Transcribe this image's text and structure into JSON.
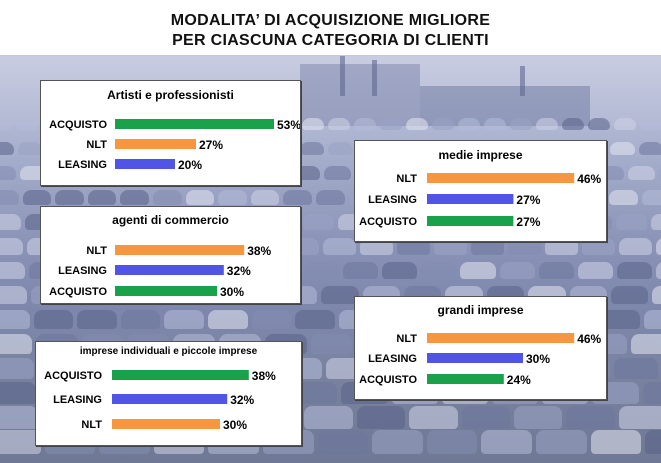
{
  "header": {
    "title_line1": "MODALITA’ DI ACQUISIZIONE MIGLIORE",
    "title_line2": "PER CIASCUNA CATEGORIA DI CLIENTI"
  },
  "colors": {
    "acquisto": "#1aa24a",
    "nlt": "#f7963e",
    "leasing": "#5055e8"
  },
  "chart_data": [
    {
      "type": "bar",
      "title": "Artisti e professionisti",
      "categories": [
        "ACQUISTO",
        "NLT",
        "LEASING"
      ],
      "values": [
        53,
        27,
        20
      ],
      "value_labels": [
        "53%",
        "27%",
        "20%"
      ]
    },
    {
      "type": "bar",
      "title": "agenti di commercio",
      "categories": [
        "NLT",
        "LEASING",
        "ACQUISTO"
      ],
      "values": [
        38,
        32,
        30
      ],
      "value_labels": [
        "38%",
        "32%",
        "30%"
      ]
    },
    {
      "type": "bar",
      "title": "imprese individuali e piccole imprese",
      "categories": [
        "ACQUISTO",
        "LEASING",
        "NLT"
      ],
      "values": [
        38,
        32,
        30
      ],
      "value_labels": [
        "38%",
        "32%",
        "30%"
      ]
    },
    {
      "type": "bar",
      "title": "medie imprese",
      "categories": [
        "NLT",
        "LEASING",
        "ACQUISTO"
      ],
      "values": [
        46,
        27,
        27
      ],
      "value_labels": [
        "46%",
        "27%",
        "27%"
      ]
    },
    {
      "type": "bar",
      "title": "grandi imprese",
      "categories": [
        "NLT",
        "LEASING",
        "ACQUISTO"
      ],
      "values": [
        46,
        30,
        24
      ],
      "value_labels": [
        "46%",
        "30%",
        "24%"
      ]
    }
  ]
}
